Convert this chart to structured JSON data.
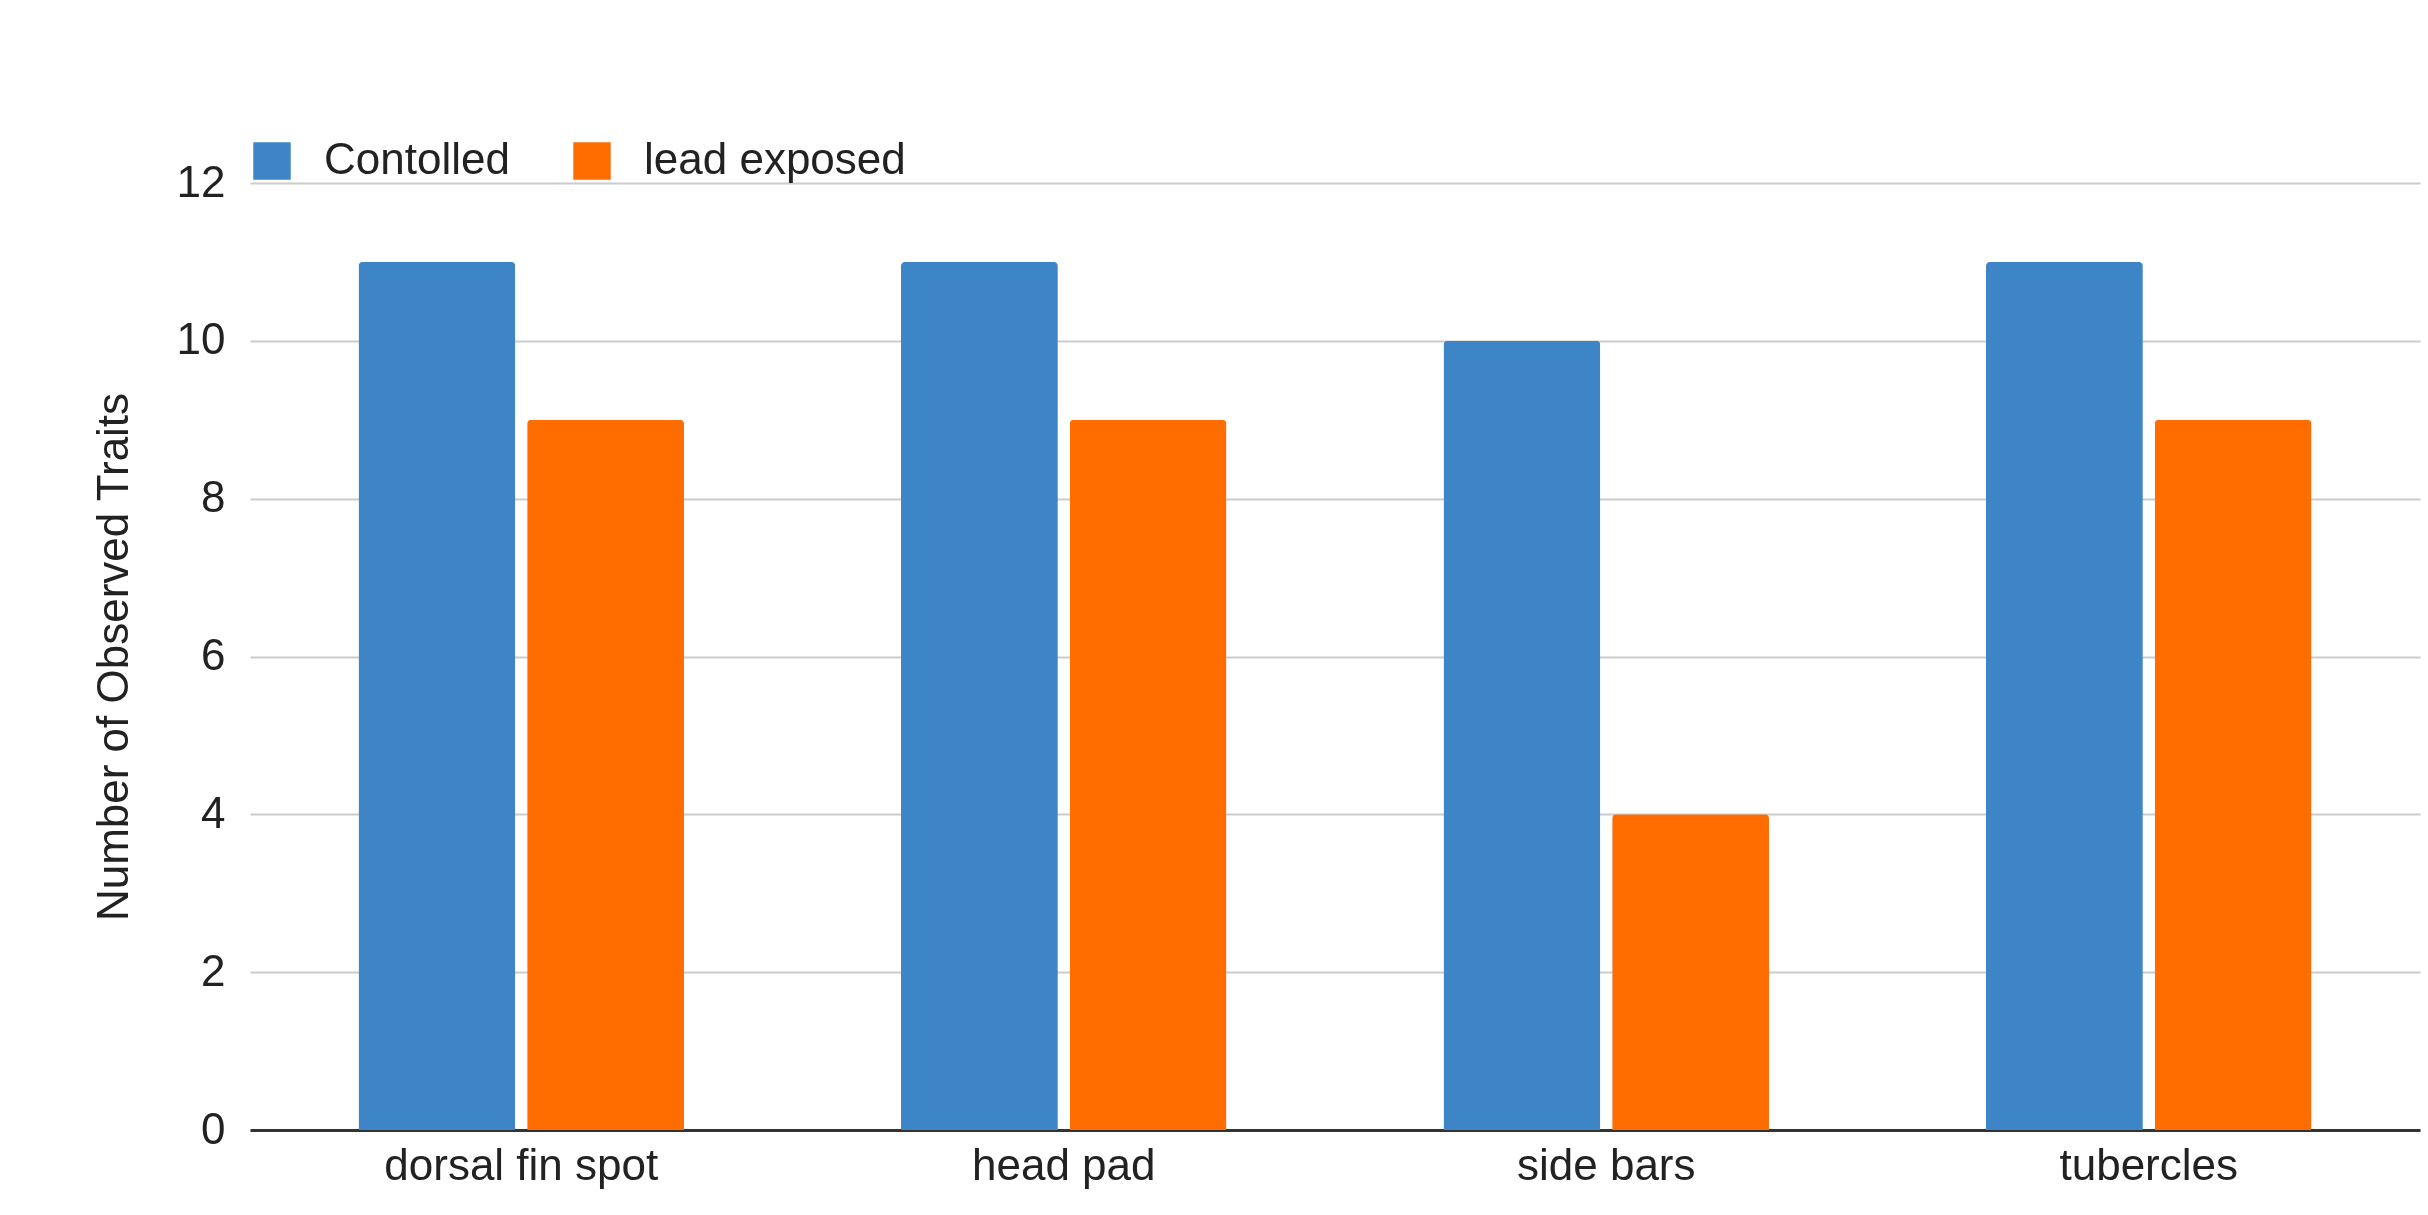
{
  "chart_data": {
    "type": "bar",
    "ylabel": "Number of Observed Traits",
    "categories": [
      "dorsal fin spot",
      "head pad",
      "side bars",
      "tubercles"
    ],
    "series": [
      {
        "name": "Contolled",
        "color": "#3d85c6",
        "values": [
          11,
          11,
          10,
          11
        ]
      },
      {
        "name": "lead exposed",
        "color": "#ff6d01",
        "values": [
          9,
          9,
          4,
          9
        ]
      }
    ],
    "ylim": [
      0,
      12
    ],
    "yticks": [
      0,
      2,
      4,
      6,
      8,
      10,
      12
    ],
    "grid": "y",
    "legend": "top"
  }
}
